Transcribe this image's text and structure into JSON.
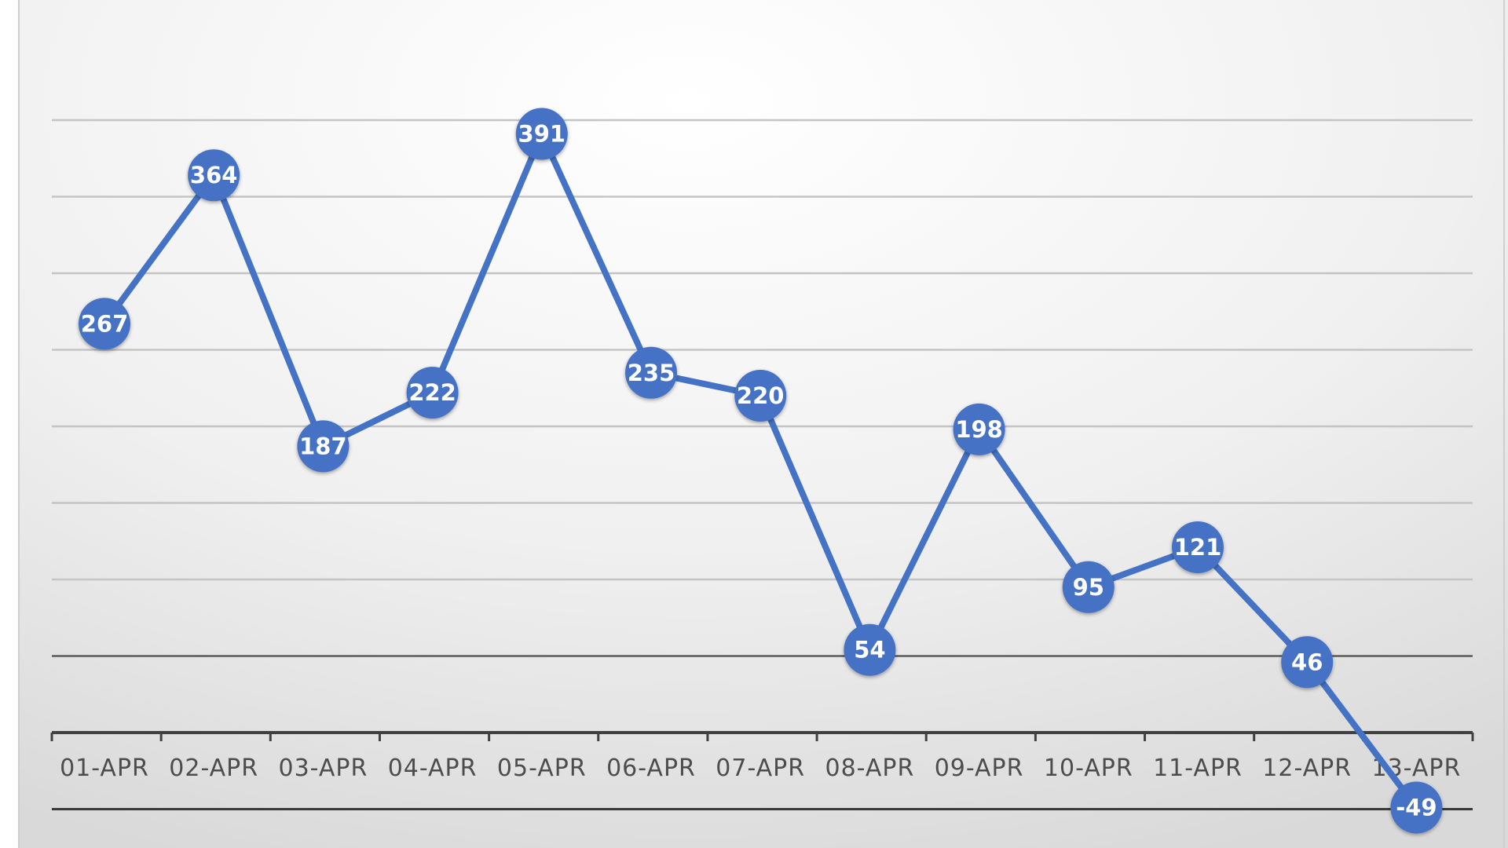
{
  "chart_data": {
    "type": "line",
    "title": "",
    "xlabel": "",
    "ylabel": "",
    "categories": [
      "01-APR",
      "02-APR",
      "03-APR",
      "04-APR",
      "05-APR",
      "06-APR",
      "07-APR",
      "08-APR",
      "09-APR",
      "10-APR",
      "11-APR",
      "12-APR",
      "13-APR"
    ],
    "values": [
      267,
      364,
      187,
      222,
      391,
      235,
      220,
      54,
      198,
      95,
      121,
      46,
      -49
    ],
    "ylim": [
      -50,
      400
    ],
    "y_gridline_step": 50,
    "y_tick_labels_shown": false,
    "data_labels_shown": true,
    "grid": true,
    "legend": "none",
    "colors": {
      "series": "#4472c4",
      "marker_label": "#ffffff",
      "gridline": "#c4c4c4",
      "axis": "#404040",
      "tick_label": "#4d4d4d",
      "background_center": "#ffffff",
      "background_edge": "#dadada",
      "border": "#cfcfcf"
    }
  }
}
